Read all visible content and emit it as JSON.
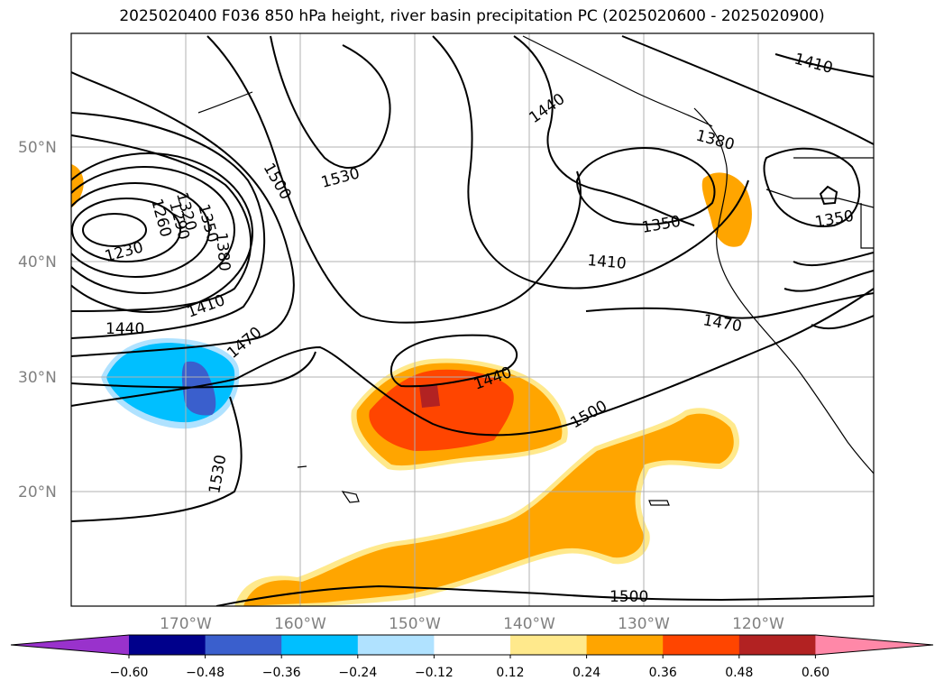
{
  "title": "2025020400 F036 850 hPa height, river basin precipitation PC (2025020600 - 2025020900)",
  "lat_labels": [
    "50°N",
    "40°N",
    "30°N",
    "20°N"
  ],
  "lon_labels": [
    "170°W",
    "160°W",
    "150°W",
    "140°W",
    "130°W",
    "120°W"
  ],
  "contour_labels": [
    "1230",
    "1260",
    "1290",
    "1320",
    "1350",
    "1380",
    "1410",
    "1440",
    "1470",
    "1500",
    "1530",
    "1500",
    "1440",
    "1410",
    "1380",
    "1350",
    "1410",
    "1470",
    "1500",
    "1530",
    "1350",
    "1500",
    "1440",
    "1410"
  ],
  "colorbar": {
    "ticks": [
      "−0.60",
      "−0.48",
      "−0.36",
      "−0.24",
      "−0.12",
      "0.12",
      "0.24",
      "0.36",
      "0.48",
      "0.60"
    ],
    "colors": [
      "#9932cc",
      "#00008b",
      "#3a5fcd",
      "#00bfff",
      "#b0e2ff",
      "#ffffff",
      "#ffe98c",
      "#ffa500",
      "#ff4500",
      "#b22222",
      "#ff88a8"
    ]
  }
}
